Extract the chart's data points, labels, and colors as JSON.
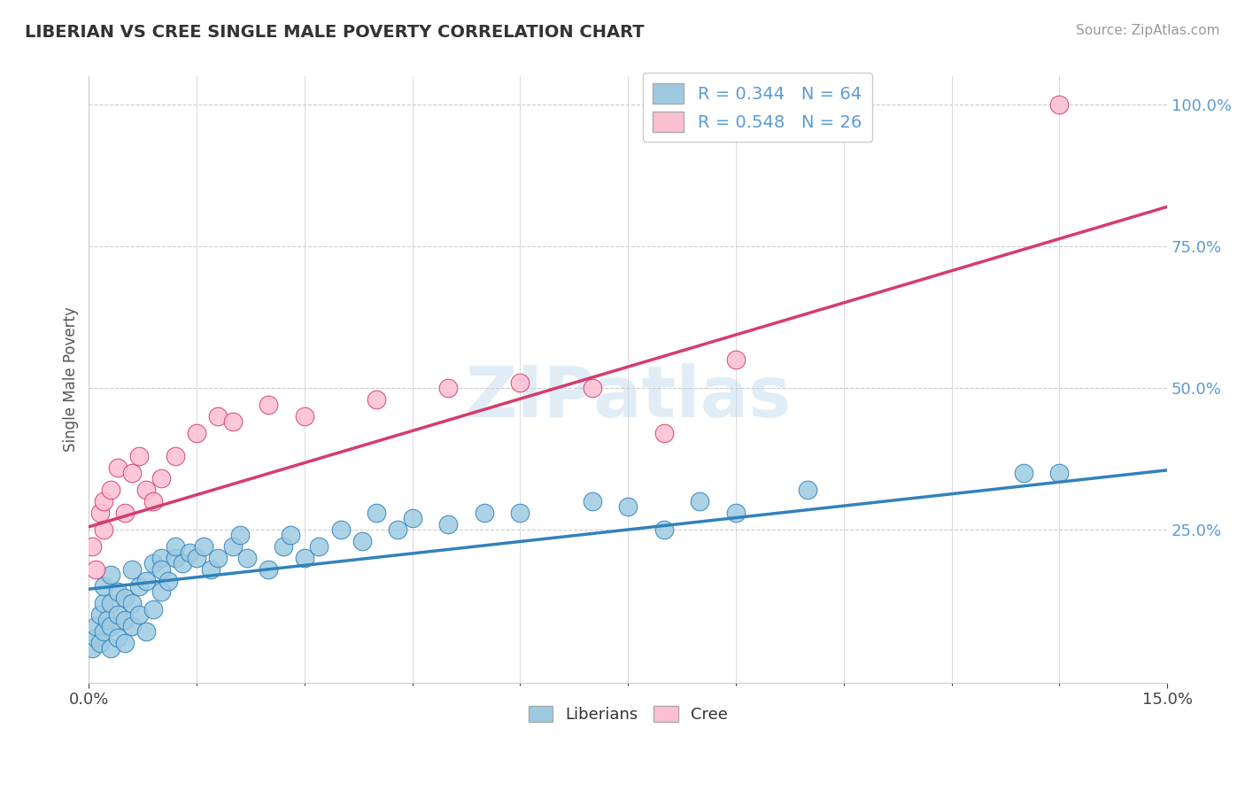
{
  "title": "LIBERIAN VS CREE SINGLE MALE POVERTY CORRELATION CHART",
  "source": "Source: ZipAtlas.com",
  "ylabel": "Single Male Poverty",
  "xlim": [
    0.0,
    0.15
  ],
  "ylim": [
    -0.02,
    1.05
  ],
  "ytick_positions": [
    0.25,
    0.5,
    0.75,
    1.0
  ],
  "ytick_labels": [
    "25.0%",
    "50.0%",
    "75.0%",
    "100.0%"
  ],
  "liberian_color": "#9ecae1",
  "cree_color": "#fcbfd2",
  "liberian_line_color": "#3182bd",
  "cree_line_color": "#d63c6b",
  "liberian_R": 0.344,
  "liberian_N": 64,
  "cree_R": 0.548,
  "cree_N": 26,
  "watermark": "ZIPatlas",
  "lib_line_x0": 0.0,
  "lib_line_y0": 0.145,
  "lib_line_x1": 0.15,
  "lib_line_y1": 0.355,
  "cree_line_x0": 0.0,
  "cree_line_y0": 0.255,
  "cree_line_x1": 0.15,
  "cree_line_y1": 0.82,
  "liberian_x": [
    0.0005,
    0.001,
    0.001,
    0.0015,
    0.0015,
    0.002,
    0.002,
    0.002,
    0.0025,
    0.003,
    0.003,
    0.003,
    0.003,
    0.004,
    0.004,
    0.004,
    0.005,
    0.005,
    0.005,
    0.006,
    0.006,
    0.006,
    0.007,
    0.007,
    0.008,
    0.008,
    0.009,
    0.009,
    0.01,
    0.01,
    0.01,
    0.011,
    0.012,
    0.012,
    0.013,
    0.014,
    0.015,
    0.016,
    0.017,
    0.018,
    0.02,
    0.021,
    0.022,
    0.025,
    0.027,
    0.028,
    0.03,
    0.032,
    0.035,
    0.038,
    0.04,
    0.043,
    0.045,
    0.05,
    0.055,
    0.06,
    0.07,
    0.075,
    0.08,
    0.085,
    0.09,
    0.1,
    0.13,
    0.135
  ],
  "liberian_y": [
    0.04,
    0.06,
    0.08,
    0.05,
    0.1,
    0.07,
    0.12,
    0.15,
    0.09,
    0.04,
    0.08,
    0.12,
    0.17,
    0.06,
    0.1,
    0.14,
    0.05,
    0.09,
    0.13,
    0.08,
    0.12,
    0.18,
    0.1,
    0.15,
    0.07,
    0.16,
    0.11,
    0.19,
    0.2,
    0.14,
    0.18,
    0.16,
    0.2,
    0.22,
    0.19,
    0.21,
    0.2,
    0.22,
    0.18,
    0.2,
    0.22,
    0.24,
    0.2,
    0.18,
    0.22,
    0.24,
    0.2,
    0.22,
    0.25,
    0.23,
    0.28,
    0.25,
    0.27,
    0.26,
    0.28,
    0.28,
    0.3,
    0.29,
    0.25,
    0.3,
    0.28,
    0.32,
    0.35,
    0.35
  ],
  "cree_x": [
    0.0005,
    0.001,
    0.0015,
    0.002,
    0.002,
    0.003,
    0.004,
    0.005,
    0.006,
    0.007,
    0.008,
    0.009,
    0.01,
    0.012,
    0.015,
    0.018,
    0.02,
    0.025,
    0.03,
    0.04,
    0.05,
    0.06,
    0.07,
    0.08,
    0.09,
    0.135
  ],
  "cree_y": [
    0.22,
    0.18,
    0.28,
    0.25,
    0.3,
    0.32,
    0.36,
    0.28,
    0.35,
    0.38,
    0.32,
    0.3,
    0.34,
    0.38,
    0.42,
    0.45,
    0.44,
    0.47,
    0.45,
    0.48,
    0.5,
    0.51,
    0.5,
    0.42,
    0.55,
    1.0
  ]
}
